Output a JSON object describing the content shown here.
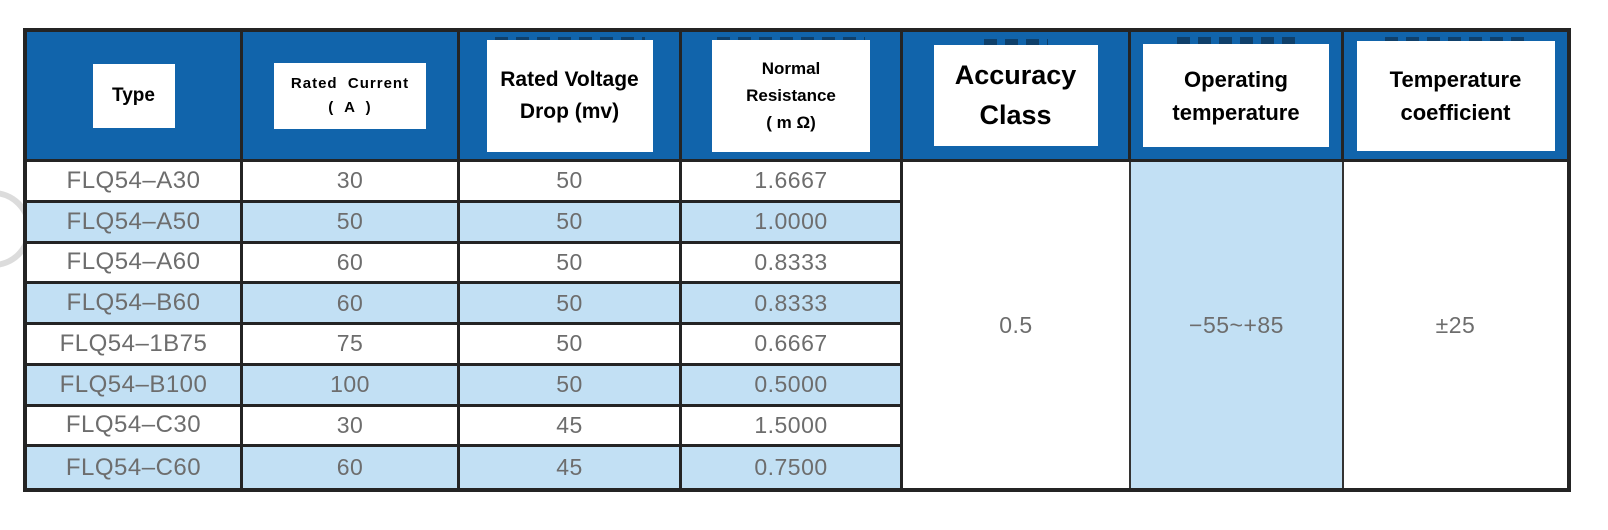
{
  "colors": {
    "header_blue": "#1164ab",
    "row_highlight_blue": "#c2e0f4",
    "border_dark": "#242424",
    "value_text_gray": "#6d6d6d"
  },
  "table": {
    "columns": [
      {
        "name": "type",
        "lines": [
          "Type"
        ]
      },
      {
        "name": "rated_current",
        "lines": [
          "Rated  Current",
          "(  A  )"
        ]
      },
      {
        "name": "rated_voltage_drop",
        "lines": [
          "Rated Voltage",
          "Drop (mv)"
        ]
      },
      {
        "name": "normal_resistance",
        "lines": [
          "Normal",
          "Resistance",
          "( m Ω)"
        ]
      },
      {
        "name": "accuracy_class",
        "lines": [
          "Accuracy",
          "Class"
        ]
      },
      {
        "name": "operating_temperature",
        "lines": [
          "Operating",
          "temperature"
        ]
      },
      {
        "name": "temperature_coefficient",
        "lines": [
          "Temperature",
          "coefficient"
        ]
      }
    ],
    "rows": [
      {
        "type": "FLQ54–A30",
        "rated_current": "30",
        "rated_voltage_drop": "50",
        "normal_resistance": "1.6667"
      },
      {
        "type": "FLQ54–A50",
        "rated_current": "50",
        "rated_voltage_drop": "50",
        "normal_resistance": "1.0000"
      },
      {
        "type": "FLQ54–A60",
        "rated_current": "60",
        "rated_voltage_drop": "50",
        "normal_resistance": "0.8333"
      },
      {
        "type": "FLQ54–B60",
        "rated_current": "60",
        "rated_voltage_drop": "50",
        "normal_resistance": "0.8333"
      },
      {
        "type": "FLQ54–1B75",
        "rated_current": "75",
        "rated_voltage_drop": "50",
        "normal_resistance": "0.6667"
      },
      {
        "type": "FLQ54–B100",
        "rated_current": "100",
        "rated_voltage_drop": "50",
        "normal_resistance": "0.5000"
      },
      {
        "type": "FLQ54–C30",
        "rated_current": "30",
        "rated_voltage_drop": "45",
        "normal_resistance": "1.5000"
      },
      {
        "type": "FLQ54–C60",
        "rated_current": "60",
        "rated_voltage_drop": "45",
        "normal_resistance": "0.7500"
      }
    ],
    "merged": {
      "accuracy_class": "0.5",
      "operating_temperature": "−55~+85",
      "temperature_coefficient": "±25"
    }
  }
}
